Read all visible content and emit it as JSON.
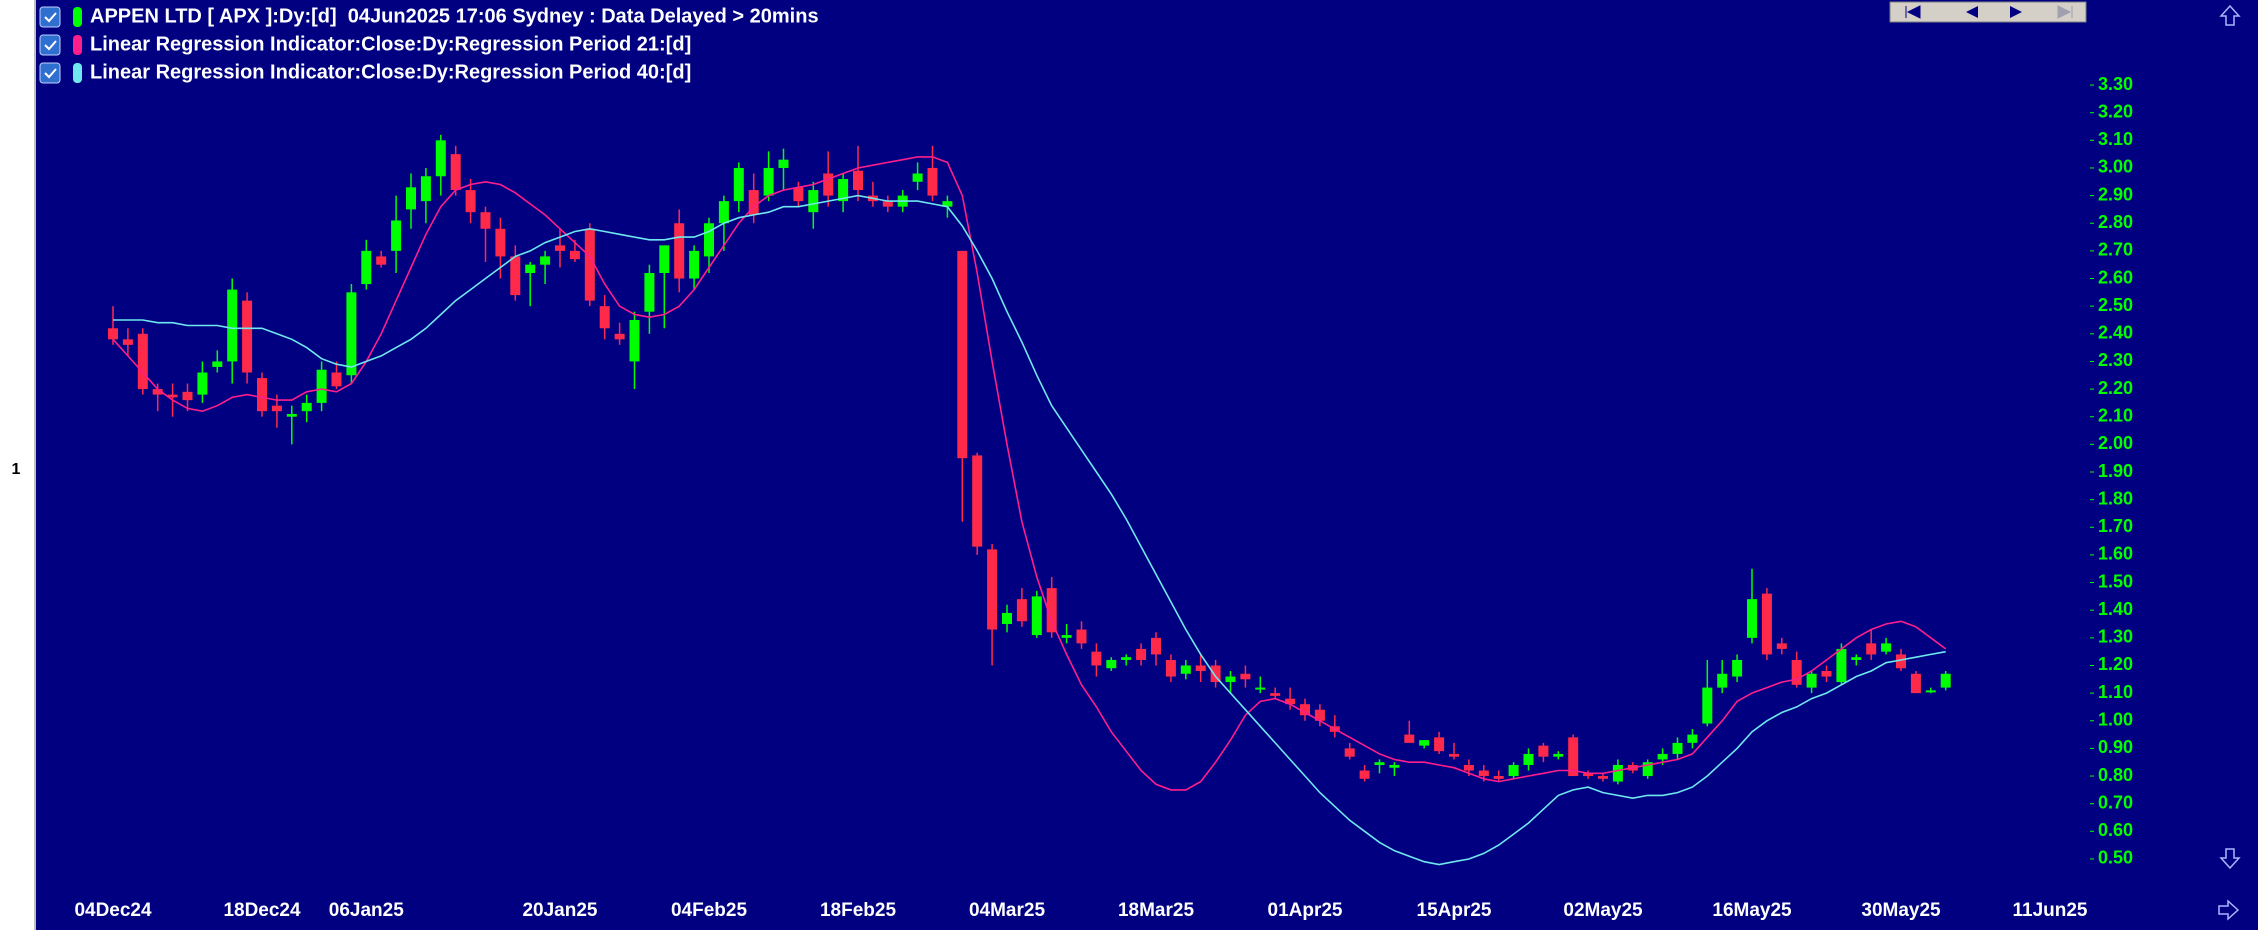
{
  "chart_data": {
    "type": "candlestick",
    "pane_label": "1",
    "candles": {
      "name": "APPEN LTD [ APX ]:Dy:[d]  04Jun2025 17:06 Sydney : Data Delayed > 20mins",
      "color": "#00ff00",
      "up_color": "#00ff00",
      "down_color": "#ff2a4a",
      "open": [
        2.42,
        2.38,
        2.4,
        2.2,
        2.18,
        2.19,
        2.18,
        2.28,
        2.3,
        2.52,
        2.24,
        2.14,
        2.1,
        2.12,
        2.15,
        2.26,
        2.25,
        2.58,
        2.68,
        2.7,
        2.85,
        2.88,
        2.97,
        3.05,
        2.92,
        2.84,
        2.78,
        2.68,
        2.62,
        2.65,
        2.72,
        2.7,
        2.78,
        2.5,
        2.4,
        2.3,
        2.48,
        2.62,
        2.8,
        2.6,
        2.68,
        2.8,
        2.88,
        2.92,
        2.9,
        3.0,
        2.93,
        2.84,
        2.98,
        2.88,
        2.99,
        2.9,
        2.88,
        2.86,
        2.95,
        3.0,
        2.86,
        2.7,
        1.96,
        1.62,
        1.35,
        1.44,
        1.31,
        1.48,
        1.3,
        1.33,
        1.25,
        1.19,
        1.22,
        1.26,
        1.3,
        1.22,
        1.17,
        1.2,
        1.2,
        1.14,
        1.17,
        1.12,
        1.1,
        1.08,
        1.06,
        1.04,
        0.98,
        0.9,
        0.82,
        0.84,
        0.83,
        0.95,
        0.91,
        0.94,
        0.88,
        0.84,
        0.82,
        0.8,
        0.8,
        0.84,
        0.91,
        0.87,
        0.94,
        0.81,
        0.8,
        0.78,
        0.84,
        0.8,
        0.86,
        0.88,
        0.92,
        0.99,
        1.12,
        1.16,
        1.3,
        1.46,
        1.28,
        1.22,
        1.12,
        1.18,
        1.14,
        1.22,
        1.28,
        1.25,
        1.24,
        1.17,
        1.11,
        1.12,
        null,
        null,
        null,
        null,
        null,
        null,
        null
      ],
      "high": [
        2.5,
        2.42,
        2.42,
        2.22,
        2.22,
        2.22,
        2.3,
        2.34,
        2.6,
        2.55,
        2.26,
        2.18,
        2.14,
        2.18,
        2.3,
        2.3,
        2.58,
        2.74,
        2.7,
        2.9,
        2.98,
        3.0,
        3.12,
        3.08,
        2.96,
        2.86,
        2.82,
        2.72,
        2.66,
        2.7,
        2.78,
        2.74,
        2.8,
        2.54,
        2.44,
        2.48,
        2.65,
        2.72,
        2.85,
        2.72,
        2.82,
        2.9,
        3.02,
        2.98,
        3.06,
        3.07,
        2.95,
        2.95,
        3.06,
        2.98,
        3.08,
        2.95,
        2.9,
        2.92,
        3.02,
        3.08,
        2.9,
        2.7,
        1.97,
        1.64,
        1.42,
        1.48,
        1.47,
        1.52,
        1.35,
        1.36,
        1.28,
        1.23,
        1.24,
        1.28,
        1.32,
        1.24,
        1.22,
        1.24,
        1.22,
        1.18,
        1.2,
        1.16,
        1.12,
        1.12,
        1.08,
        1.06,
        1.02,
        0.92,
        0.84,
        0.86,
        0.85,
        1.0,
        0.93,
        0.96,
        0.92,
        0.86,
        0.84,
        0.82,
        0.85,
        0.9,
        0.92,
        0.89,
        0.95,
        0.82,
        0.81,
        0.86,
        0.85,
        0.86,
        0.9,
        0.94,
        0.97,
        1.22,
        1.22,
        1.24,
        1.55,
        1.48,
        1.3,
        1.25,
        1.18,
        1.2,
        1.28,
        1.24,
        1.33,
        1.3,
        1.26,
        1.18,
        1.12,
        1.18,
        null,
        null,
        null,
        null,
        null,
        null,
        null
      ],
      "low": [
        2.36,
        2.32,
        2.18,
        2.12,
        2.1,
        2.12,
        2.15,
        2.26,
        2.22,
        2.22,
        2.1,
        2.06,
        2.0,
        2.08,
        2.12,
        2.2,
        2.22,
        2.56,
        2.64,
        2.62,
        2.78,
        2.8,
        2.9,
        2.9,
        2.8,
        2.66,
        2.6,
        2.52,
        2.5,
        2.58,
        2.64,
        2.66,
        2.5,
        2.38,
        2.36,
        2.2,
        2.4,
        2.42,
        2.55,
        2.56,
        2.62,
        2.7,
        2.84,
        2.8,
        2.88,
        2.92,
        2.86,
        2.78,
        2.86,
        2.84,
        2.88,
        2.86,
        2.84,
        2.84,
        2.92,
        2.88,
        2.82,
        1.72,
        1.6,
        1.2,
        1.32,
        1.34,
        1.3,
        1.3,
        1.28,
        1.26,
        1.16,
        1.18,
        1.2,
        1.2,
        1.2,
        1.14,
        1.15,
        1.14,
        1.12,
        1.1,
        1.12,
        1.1,
        1.08,
        1.04,
        1.0,
        0.98,
        0.94,
        0.86,
        0.78,
        0.81,
        0.8,
        0.92,
        0.9,
        0.88,
        0.86,
        0.8,
        0.78,
        0.78,
        0.79,
        0.82,
        0.85,
        0.86,
        0.8,
        0.79,
        0.78,
        0.77,
        0.81,
        0.79,
        0.84,
        0.86,
        0.9,
        0.98,
        1.1,
        1.14,
        1.28,
        1.22,
        1.24,
        1.12,
        1.1,
        1.14,
        1.13,
        1.2,
        1.22,
        1.24,
        1.18,
        1.1,
        1.1,
        1.11,
        null,
        null,
        null,
        null,
        null,
        null,
        null
      ],
      "close": [
        2.38,
        2.36,
        2.2,
        2.18,
        2.17,
        2.16,
        2.26,
        2.3,
        2.56,
        2.26,
        2.12,
        2.12,
        2.11,
        2.15,
        2.27,
        2.21,
        2.55,
        2.7,
        2.65,
        2.81,
        2.93,
        2.97,
        3.1,
        2.92,
        2.84,
        2.78,
        2.68,
        2.54,
        2.65,
        2.68,
        2.7,
        2.67,
        2.52,
        2.42,
        2.38,
        2.45,
        2.62,
        2.72,
        2.6,
        2.7,
        2.8,
        2.88,
        3.0,
        2.83,
        3.0,
        3.03,
        2.88,
        2.92,
        2.9,
        2.96,
        2.92,
        2.88,
        2.86,
        2.9,
        2.98,
        2.9,
        2.88,
        1.95,
        1.63,
        1.33,
        1.39,
        1.36,
        1.45,
        1.32,
        1.31,
        1.28,
        1.2,
        1.22,
        1.23,
        1.22,
        1.24,
        1.16,
        1.2,
        1.18,
        1.14,
        1.16,
        1.15,
        1.12,
        1.09,
        1.06,
        1.02,
        1.0,
        0.96,
        0.87,
        0.79,
        0.85,
        0.84,
        0.92,
        0.93,
        0.89,
        0.87,
        0.82,
        0.8,
        0.79,
        0.84,
        0.88,
        0.87,
        0.88,
        0.8,
        0.8,
        0.79,
        0.84,
        0.82,
        0.85,
        0.88,
        0.92,
        0.95,
        1.12,
        1.17,
        1.22,
        1.44,
        1.24,
        1.26,
        1.13,
        1.17,
        1.16,
        1.26,
        1.23,
        1.24,
        1.28,
        1.19,
        1.1,
        1.11,
        1.17,
        null,
        null,
        null,
        null,
        null,
        null,
        null
      ]
    },
    "series": [
      {
        "name": "Linear Regression Indicator:Close:Dy:Regression Period 21:[d]",
        "color": "#ff1e8c",
        "values": [
          2.38,
          2.32,
          2.26,
          2.2,
          2.16,
          2.13,
          2.12,
          2.14,
          2.17,
          2.18,
          2.17,
          2.16,
          2.16,
          2.19,
          2.2,
          2.19,
          2.22,
          2.3,
          2.4,
          2.52,
          2.64,
          2.76,
          2.86,
          2.92,
          2.94,
          2.95,
          2.94,
          2.91,
          2.87,
          2.83,
          2.78,
          2.73,
          2.68,
          2.58,
          2.5,
          2.47,
          2.46,
          2.47,
          2.5,
          2.56,
          2.64,
          2.72,
          2.8,
          2.86,
          2.9,
          2.92,
          2.93,
          2.94,
          2.96,
          2.98,
          3.0,
          3.01,
          3.02,
          3.03,
          3.04,
          3.04,
          3.02,
          2.9,
          2.62,
          2.3,
          2.0,
          1.72,
          1.52,
          1.36,
          1.24,
          1.13,
          1.05,
          0.96,
          0.89,
          0.82,
          0.77,
          0.75,
          0.75,
          0.78,
          0.85,
          0.93,
          1.02,
          1.07,
          1.08,
          1.06,
          1.03,
          1.0,
          0.97,
          0.94,
          0.91,
          0.88,
          0.86,
          0.85,
          0.85,
          0.84,
          0.83,
          0.81,
          0.79,
          0.78,
          0.79,
          0.8,
          0.81,
          0.82,
          0.82,
          0.81,
          0.81,
          0.82,
          0.83,
          0.84,
          0.85,
          0.86,
          0.88,
          0.94,
          1.0,
          1.07,
          1.1,
          1.12,
          1.14,
          1.15,
          1.18,
          1.22,
          1.26,
          1.3,
          1.33,
          1.35,
          1.36,
          1.34,
          1.3,
          1.26,
          null,
          null,
          null,
          null,
          null,
          null,
          null
        ]
      },
      {
        "name": "Linear Regression Indicator:Close:Dy:Regression Period 40:[d]",
        "color": "#70e8f0",
        "values": [
          2.45,
          2.45,
          2.45,
          2.44,
          2.44,
          2.43,
          2.43,
          2.43,
          2.42,
          2.42,
          2.42,
          2.4,
          2.38,
          2.35,
          2.31,
          2.29,
          2.28,
          2.3,
          2.32,
          2.35,
          2.38,
          2.42,
          2.47,
          2.52,
          2.56,
          2.6,
          2.64,
          2.68,
          2.7,
          2.73,
          2.75,
          2.77,
          2.78,
          2.77,
          2.76,
          2.75,
          2.74,
          2.74,
          2.75,
          2.75,
          2.77,
          2.8,
          2.82,
          2.83,
          2.84,
          2.86,
          2.86,
          2.87,
          2.88,
          2.89,
          2.9,
          2.89,
          2.88,
          2.88,
          2.88,
          2.87,
          2.86,
          2.79,
          2.7,
          2.6,
          2.48,
          2.37,
          2.25,
          2.14,
          2.06,
          1.98,
          1.9,
          1.82,
          1.73,
          1.63,
          1.53,
          1.43,
          1.33,
          1.24,
          1.16,
          1.1,
          1.04,
          0.98,
          0.92,
          0.86,
          0.8,
          0.74,
          0.69,
          0.64,
          0.6,
          0.56,
          0.53,
          0.51,
          0.49,
          0.48,
          0.49,
          0.5,
          0.52,
          0.55,
          0.59,
          0.63,
          0.68,
          0.73,
          0.75,
          0.76,
          0.74,
          0.73,
          0.72,
          0.73,
          0.73,
          0.74,
          0.76,
          0.8,
          0.85,
          0.9,
          0.96,
          1.0,
          1.03,
          1.05,
          1.08,
          1.1,
          1.13,
          1.16,
          1.18,
          1.21,
          1.22,
          1.23,
          1.24,
          1.25,
          null,
          null,
          null,
          null,
          null,
          null,
          null
        ]
      }
    ],
    "categories": [
      "04Dec24",
      null,
      null,
      null,
      null,
      null,
      null,
      null,
      null,
      null,
      "18Dec24",
      null,
      null,
      null,
      null,
      null,
      null,
      "06Jan25",
      null,
      null,
      null,
      null,
      null,
      null,
      null,
      null,
      null,
      null,
      null,
      null,
      "20Jan25",
      null,
      null,
      null,
      null,
      null,
      null,
      null,
      null,
      null,
      "04Feb25",
      null,
      null,
      null,
      null,
      null,
      null,
      null,
      null,
      null,
      "18Feb25",
      null,
      null,
      null,
      null,
      null,
      null,
      null,
      null,
      null,
      "04Mar25",
      null,
      null,
      null,
      null,
      null,
      null,
      null,
      null,
      null,
      "18Mar25",
      null,
      null,
      null,
      null,
      null,
      null,
      null,
      null,
      null,
      "01Apr25",
      null,
      null,
      null,
      null,
      null,
      null,
      null,
      null,
      null,
      "15Apr25",
      null,
      null,
      null,
      null,
      null,
      null,
      null,
      null,
      null,
      "02May25",
      null,
      null,
      null,
      null,
      null,
      null,
      null,
      null,
      null,
      "16May25",
      null,
      null,
      null,
      null,
      null,
      null,
      null,
      null,
      null,
      "30May25",
      null,
      null,
      null,
      null,
      null,
      null,
      null,
      null,
      null,
      "11Jun25"
    ],
    "ylim": [
      0.4,
      3.4
    ],
    "yticks": [
      {
        "value": 0.5,
        "label": "0.50"
      },
      {
        "value": 0.6,
        "label": "0.60"
      },
      {
        "value": 0.7,
        "label": "0.70"
      },
      {
        "value": 0.8,
        "label": "0.80"
      },
      {
        "value": 0.9,
        "label": "0.90"
      },
      {
        "value": 1.0,
        "label": "1.00"
      },
      {
        "value": 1.1,
        "label": "1.10"
      },
      {
        "value": 1.2,
        "label": "1.20"
      },
      {
        "value": 1.3,
        "label": "1.30"
      },
      {
        "value": 1.4,
        "label": "1.40"
      },
      {
        "value": 1.5,
        "label": "1.50"
      },
      {
        "value": 1.6,
        "label": "1.60"
      },
      {
        "value": 1.7,
        "label": "1.70"
      },
      {
        "value": 1.8,
        "label": "1.80"
      },
      {
        "value": 1.9,
        "label": "1.90"
      },
      {
        "value": 2.0,
        "label": "2.00"
      },
      {
        "value": 2.1,
        "label": "2.10"
      },
      {
        "value": 2.2,
        "label": "2.20"
      },
      {
        "value": 2.3,
        "label": "2.30"
      },
      {
        "value": 2.4,
        "label": "2.40"
      },
      {
        "value": 2.5,
        "label": "2.50"
      },
      {
        "value": 2.6,
        "label": "2.60"
      },
      {
        "value": 2.7,
        "label": "2.70"
      },
      {
        "value": 2.8,
        "label": "2.80"
      },
      {
        "value": 2.9,
        "label": "2.90"
      },
      {
        "value": 3.0,
        "label": "3.00"
      },
      {
        "value": 3.1,
        "label": "3.10"
      },
      {
        "value": 3.2,
        "label": "3.20"
      },
      {
        "value": 3.3,
        "label": "3.30"
      }
    ],
    "y_axis_side": "right",
    "tick_color": "#00ff00",
    "background": "#000080"
  }
}
